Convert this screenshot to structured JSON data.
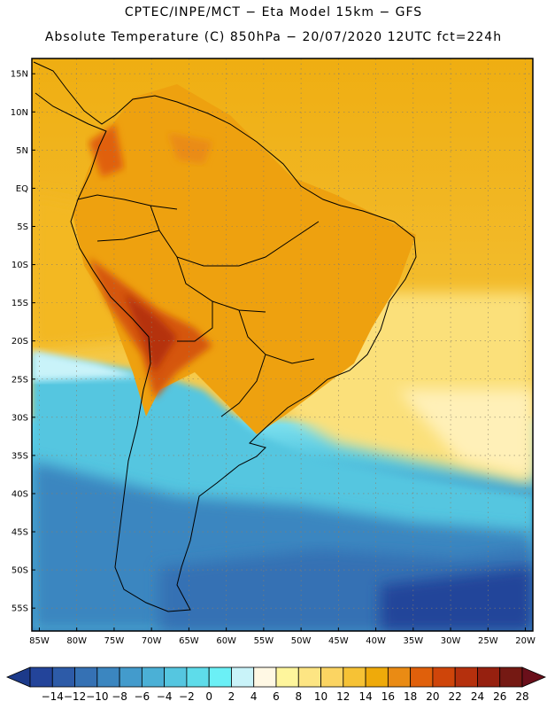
{
  "title_line1": "CPTEC/INPE/MCT −   Eta Model 15km − GFS",
  "title_line2": "Absolute Temperature (C) 850hPa − 20/07/2020 12UTC fct=224h",
  "map": {
    "lon_range": [
      -86,
      -19
    ],
    "lat_range": [
      -58,
      17
    ],
    "lat_ticks": [
      {
        "value": 15,
        "label": "15N"
      },
      {
        "value": 10,
        "label": "10N"
      },
      {
        "value": 5,
        "label": "5N"
      },
      {
        "value": 0,
        "label": "EQ"
      },
      {
        "value": -5,
        "label": "5S"
      },
      {
        "value": -10,
        "label": "10S"
      },
      {
        "value": -15,
        "label": "15S"
      },
      {
        "value": -20,
        "label": "20S"
      },
      {
        "value": -25,
        "label": "25S"
      },
      {
        "value": -30,
        "label": "30S"
      },
      {
        "value": -35,
        "label": "35S"
      },
      {
        "value": -40,
        "label": "40S"
      },
      {
        "value": -45,
        "label": "45S"
      },
      {
        "value": -50,
        "label": "50S"
      },
      {
        "value": -55,
        "label": "55S"
      }
    ],
    "lon_ticks": [
      {
        "value": -85,
        "label": "85W"
      },
      {
        "value": -80,
        "label": "80W"
      },
      {
        "value": -75,
        "label": "75W"
      },
      {
        "value": -70,
        "label": "70W"
      },
      {
        "value": -65,
        "label": "65W"
      },
      {
        "value": -60,
        "label": "60W"
      },
      {
        "value": -55,
        "label": "55W"
      },
      {
        "value": -50,
        "label": "50W"
      },
      {
        "value": -45,
        "label": "45W"
      },
      {
        "value": -40,
        "label": "40W"
      },
      {
        "value": -35,
        "label": "35W"
      },
      {
        "value": -30,
        "label": "30W"
      },
      {
        "value": -25,
        "label": "25W"
      },
      {
        "value": -20,
        "label": "20W"
      }
    ]
  },
  "colorbar": {
    "colors": [
      "#23449a",
      "#2d5ba8",
      "#3571b4",
      "#3b86c0",
      "#439bcc",
      "#4bb0d6",
      "#55c6e0",
      "#5edcea",
      "#6bf0f6",
      "#c9f3f9",
      "#fff8e4",
      "#fef59c",
      "#fde583",
      "#fbd462",
      "#f6c235",
      "#efaa0a",
      "#ea8b14",
      "#e0600b",
      "#cf450a",
      "#b5300d",
      "#96200f",
      "#751913"
    ],
    "labels": [
      "−14",
      "−12",
      "−10",
      "−8",
      "−6",
      "−4",
      "−2",
      "0",
      "2",
      "4",
      "6",
      "8",
      "10",
      "12",
      "14",
      "16",
      "18",
      "20",
      "22",
      "24",
      "26",
      "28"
    ]
  }
}
